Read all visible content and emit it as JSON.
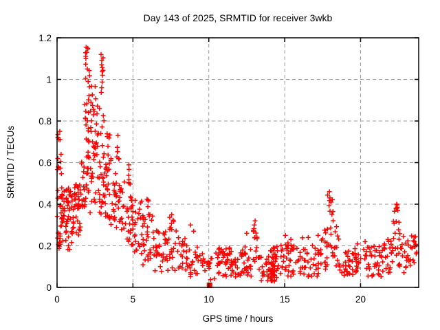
{
  "chart_data": {
    "type": "scatter",
    "title": "Day 143 of 2025, SRMTID for receiver 3wkb",
    "xlabel": "GPS time / hours",
    "ylabel": "SRMTID / TECUs",
    "xlim": [
      0,
      23.83
    ],
    "ylim": [
      0,
      1.2
    ],
    "x_ticks": [
      {
        "v": 0,
        "label": "0"
      },
      {
        "v": 5,
        "label": "5"
      },
      {
        "v": 10,
        "label": "10"
      },
      {
        "v": 15,
        "label": "15"
      },
      {
        "v": 20,
        "label": "20"
      }
    ],
    "y_ticks": [
      {
        "v": 0,
        "label": "0"
      },
      {
        "v": 0.2,
        "label": "0.2"
      },
      {
        "v": 0.4,
        "label": "0.4"
      },
      {
        "v": 0.6,
        "label": "0.6"
      },
      {
        "v": 0.8,
        "label": "0.8"
      },
      {
        "v": 1,
        "label": "1"
      },
      {
        "v": 1.2,
        "label": "1.2"
      }
    ],
    "grid": true,
    "legend": "none",
    "marker": {
      "shape": "plus",
      "color": "#ff0000",
      "size": 7
    },
    "grid_color": "#999999",
    "border_color": "#000000",
    "series_name": "SRMTID",
    "prng_seed": 42,
    "square_point": [
      10.05,
      0.01
    ],
    "feature_points": [
      [
        0.05,
        0.62
      ],
      [
        0.08,
        0.58
      ],
      [
        0.18,
        0.75
      ],
      [
        0.2,
        0.71
      ],
      [
        1.9,
        1.1
      ],
      [
        1.92,
        1.155
      ],
      [
        1.95,
        1.13
      ],
      [
        2.0,
        1.05
      ],
      [
        2.05,
        0.99
      ],
      [
        2.9,
        1.12
      ],
      [
        2.94,
        1.07
      ],
      [
        3.0,
        1.02
      ],
      [
        6.0,
        0.42
      ],
      [
        7.55,
        0.35
      ],
      [
        8.8,
        0.3
      ],
      [
        9.0,
        0.27
      ],
      [
        12.5,
        0.26
      ],
      [
        13.0,
        0.3
      ],
      [
        13.05,
        0.32
      ],
      [
        15.05,
        0.25
      ],
      [
        16.55,
        0.24
      ],
      [
        17.2,
        0.25
      ],
      [
        17.95,
        0.46
      ],
      [
        17.98,
        0.43
      ],
      [
        18.05,
        0.41
      ],
      [
        20.3,
        0.22
      ],
      [
        21.8,
        0.23
      ],
      [
        22.38,
        0.4
      ],
      [
        22.42,
        0.385
      ],
      [
        22.45,
        0.37
      ],
      [
        23.55,
        0.22
      ],
      [
        23.6,
        0.2
      ]
    ],
    "density_bands": [
      [
        0.0,
        0.35,
        26,
        0.18,
        0.48
      ],
      [
        0.02,
        0.3,
        9,
        0.5,
        0.74
      ],
      [
        0.3,
        1.0,
        44,
        0.26,
        0.48
      ],
      [
        0.35,
        1.0,
        8,
        0.18,
        0.26
      ],
      [
        1.0,
        1.6,
        38,
        0.25,
        0.5
      ],
      [
        1.6,
        1.8,
        12,
        0.35,
        0.65
      ],
      [
        1.8,
        2.15,
        30,
        0.6,
        1.15
      ],
      [
        1.8,
        2.15,
        12,
        0.38,
        0.6
      ],
      [
        2.15,
        2.6,
        26,
        0.55,
        0.97
      ],
      [
        2.15,
        2.6,
        10,
        0.35,
        0.55
      ],
      [
        2.6,
        3.1,
        20,
        0.5,
        0.92
      ],
      [
        2.85,
        3.05,
        8,
        0.92,
        1.12
      ],
      [
        2.6,
        3.2,
        18,
        0.32,
        0.55
      ],
      [
        3.1,
        3.6,
        24,
        0.3,
        0.62
      ],
      [
        3.2,
        3.5,
        6,
        0.6,
        0.76
      ],
      [
        3.6,
        4.2,
        28,
        0.28,
        0.58
      ],
      [
        3.9,
        4.15,
        7,
        0.56,
        0.74
      ],
      [
        4.2,
        4.9,
        28,
        0.22,
        0.52
      ],
      [
        4.55,
        4.8,
        5,
        0.5,
        0.66
      ],
      [
        4.9,
        5.6,
        32,
        0.14,
        0.42
      ],
      [
        5.6,
        6.3,
        28,
        0.1,
        0.36
      ],
      [
        5.9,
        6.15,
        4,
        0.34,
        0.44
      ],
      [
        6.3,
        7.1,
        26,
        0.07,
        0.28
      ],
      [
        7.1,
        7.9,
        24,
        0.08,
        0.3
      ],
      [
        7.4,
        7.7,
        5,
        0.26,
        0.36
      ],
      [
        7.9,
        8.6,
        22,
        0.06,
        0.24
      ],
      [
        8.6,
        9.6,
        24,
        0.05,
        0.2
      ],
      [
        9.6,
        10.4,
        15,
        0.03,
        0.14
      ],
      [
        10.4,
        11.2,
        28,
        0.05,
        0.2
      ],
      [
        11.2,
        12.0,
        30,
        0.05,
        0.19
      ],
      [
        12.0,
        12.8,
        28,
        0.05,
        0.2
      ],
      [
        12.9,
        13.2,
        13,
        0.1,
        0.32
      ],
      [
        13.2,
        13.9,
        17,
        0.03,
        0.15
      ],
      [
        13.9,
        14.5,
        42,
        0.03,
        0.2
      ],
      [
        14.0,
        14.35,
        14,
        0.02,
        0.1
      ],
      [
        14.5,
        15.4,
        28,
        0.05,
        0.22
      ],
      [
        15.4,
        16.3,
        28,
        0.05,
        0.24
      ],
      [
        16.3,
        17.4,
        32,
        0.05,
        0.22
      ],
      [
        17.4,
        17.8,
        13,
        0.08,
        0.28
      ],
      [
        17.8,
        18.2,
        17,
        0.12,
        0.45
      ],
      [
        18.2,
        18.6,
        11,
        0.08,
        0.3
      ],
      [
        18.6,
        19.6,
        28,
        0.05,
        0.2
      ],
      [
        19.6,
        20.6,
        30,
        0.05,
        0.21
      ],
      [
        20.6,
        21.5,
        28,
        0.05,
        0.2
      ],
      [
        21.5,
        22.1,
        20,
        0.07,
        0.24
      ],
      [
        22.1,
        22.55,
        19,
        0.1,
        0.4
      ],
      [
        22.55,
        23.2,
        20,
        0.07,
        0.26
      ],
      [
        23.2,
        23.75,
        15,
        0.1,
        0.25
      ]
    ]
  }
}
